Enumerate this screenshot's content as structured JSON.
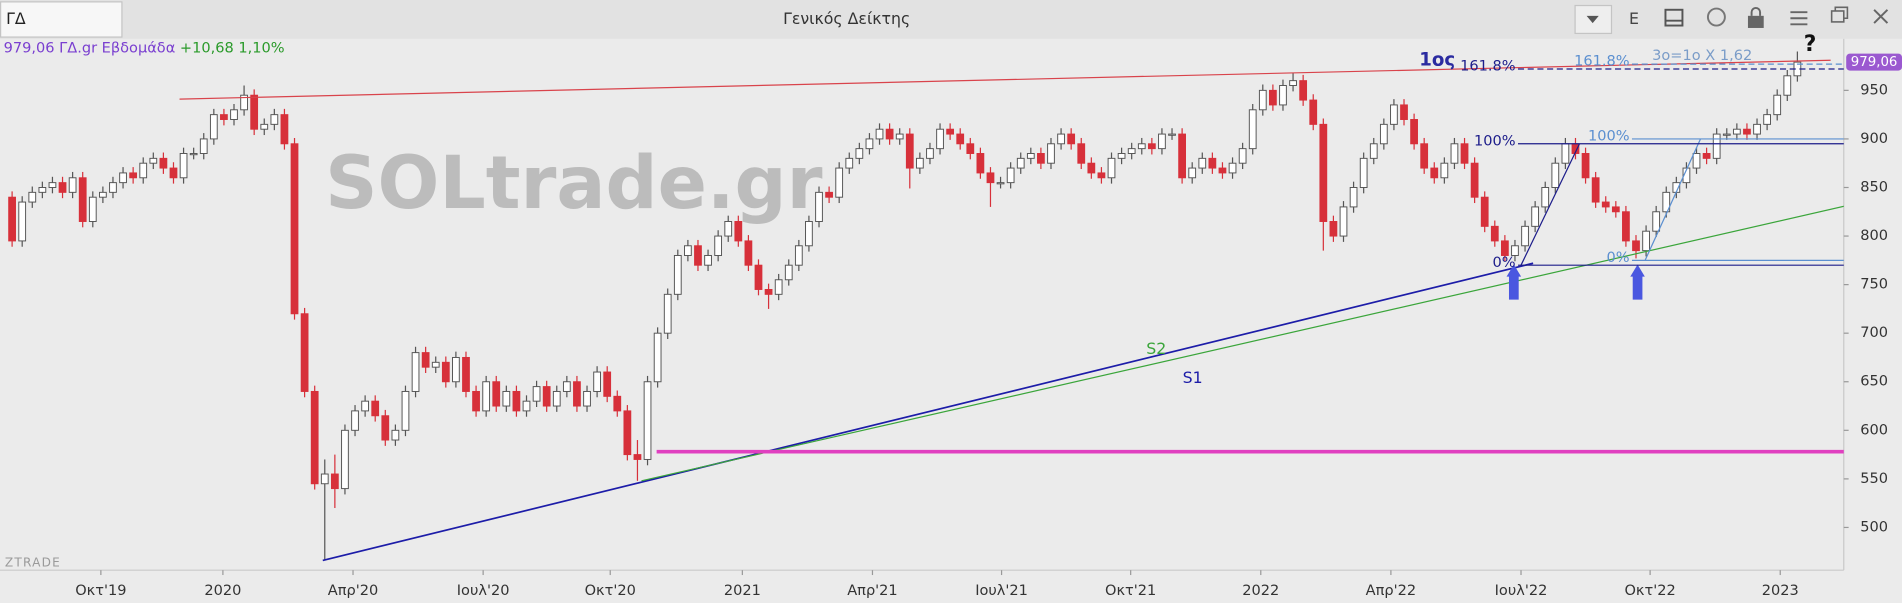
{
  "window": {
    "symbol": "ΓΔ",
    "title": "Γενικός Δείκτης",
    "button": "E"
  },
  "chart_data": {
    "type": "candlestick",
    "quote": {
      "price": "979,06",
      "label": "ΓΔ.gr Εβδομάδα",
      "change": "+10,68",
      "change_pct": "1,10%"
    },
    "watermark": "SOLtrade.gr",
    "brand": "ZTRADE",
    "last_price": {
      "value": 979.06,
      "label": "979,06"
    },
    "up_color": "#ffffff",
    "down_color": "#d7303a",
    "grid": false,
    "xlim": [
      -1.2,
      181.6
    ],
    "ylim": [
      456,
      1003
    ],
    "yticks": [
      500,
      550,
      600,
      650,
      700,
      750,
      800,
      850,
      900,
      950
    ],
    "xticks": [
      {
        "value": 8.8,
        "label": "Οκτ'19"
      },
      {
        "value": 20.9,
        "label": "2020"
      },
      {
        "value": 33.8,
        "label": "Απρ'20"
      },
      {
        "value": 46.7,
        "label": "Ιουλ'20"
      },
      {
        "value": 59.3,
        "label": "Οκτ'20"
      },
      {
        "value": 72.4,
        "label": "2021"
      },
      {
        "value": 85.3,
        "label": "Απρ'21"
      },
      {
        "value": 98.1,
        "label": "Ιουλ'21"
      },
      {
        "value": 110.9,
        "label": "Οκτ'21"
      },
      {
        "value": 123.8,
        "label": "2022"
      },
      {
        "value": 136.7,
        "label": "Απρ'22"
      },
      {
        "value": 149.6,
        "label": "Ιουλ'22"
      },
      {
        "value": 162.4,
        "label": "Οκτ'22"
      },
      {
        "value": 175.3,
        "label": "2023"
      }
    ],
    "ohlc": [
      [
        840,
        846,
        789,
        795
      ],
      [
        795,
        841,
        789,
        835
      ],
      [
        835,
        851,
        829,
        845
      ],
      [
        845,
        856,
        839,
        850
      ],
      [
        850,
        861,
        844,
        855
      ],
      [
        855,
        861,
        839,
        845
      ],
      [
        845,
        866,
        839,
        860
      ],
      [
        860,
        866,
        809,
        815
      ],
      [
        815,
        846,
        809,
        840
      ],
      [
        840,
        851,
        834,
        845
      ],
      [
        845,
        861,
        839,
        855
      ],
      [
        855,
        871,
        849,
        865
      ],
      [
        865,
        871,
        854,
        860
      ],
      [
        860,
        881,
        854,
        875
      ],
      [
        875,
        886,
        869,
        880
      ],
      [
        880,
        886,
        864,
        870
      ],
      [
        870,
        876,
        854,
        860
      ],
      [
        860,
        891,
        854,
        885
      ],
      [
        885,
        891,
        879,
        885
      ],
      [
        885,
        906,
        879,
        900
      ],
      [
        900,
        931,
        894,
        925
      ],
      [
        925,
        931,
        914,
        920
      ],
      [
        920,
        936,
        914,
        930
      ],
      [
        930,
        955,
        924,
        945
      ],
      [
        945,
        951,
        904,
        910
      ],
      [
        910,
        921,
        904,
        915
      ],
      [
        915,
        931,
        909,
        925
      ],
      [
        925,
        931,
        889,
        895
      ],
      [
        895,
        901,
        714,
        720
      ],
      [
        720,
        726,
        634,
        640
      ],
      [
        640,
        646,
        539,
        545
      ],
      [
        545,
        570,
        466,
        555
      ],
      [
        555,
        575,
        520,
        540
      ],
      [
        540,
        606,
        534,
        600
      ],
      [
        600,
        626,
        594,
        620
      ],
      [
        620,
        636,
        614,
        630
      ],
      [
        630,
        636,
        609,
        615
      ],
      [
        615,
        621,
        584,
        590
      ],
      [
        590,
        606,
        584,
        600
      ],
      [
        600,
        646,
        594,
        640
      ],
      [
        640,
        686,
        634,
        680
      ],
      [
        680,
        686,
        659,
        665
      ],
      [
        665,
        676,
        659,
        670
      ],
      [
        670,
        676,
        644,
        650
      ],
      [
        650,
        681,
        644,
        675
      ],
      [
        675,
        681,
        634,
        640
      ],
      [
        640,
        646,
        614,
        620
      ],
      [
        620,
        656,
        614,
        650
      ],
      [
        650,
        656,
        619,
        625
      ],
      [
        625,
        646,
        619,
        640
      ],
      [
        640,
        646,
        614,
        620
      ],
      [
        620,
        636,
        614,
        630
      ],
      [
        630,
        651,
        624,
        645
      ],
      [
        645,
        651,
        619,
        625
      ],
      [
        625,
        646,
        619,
        640
      ],
      [
        640,
        656,
        634,
        650
      ],
      [
        650,
        656,
        619,
        625
      ],
      [
        625,
        646,
        619,
        640
      ],
      [
        640,
        666,
        634,
        660
      ],
      [
        660,
        666,
        629,
        635
      ],
      [
        635,
        641,
        614,
        620
      ],
      [
        620,
        626,
        569,
        575
      ],
      [
        575,
        590,
        548,
        570
      ],
      [
        570,
        656,
        564,
        650
      ],
      [
        650,
        706,
        644,
        700
      ],
      [
        700,
        746,
        694,
        740
      ],
      [
        740,
        786,
        734,
        780
      ],
      [
        780,
        796,
        774,
        790
      ],
      [
        790,
        796,
        764,
        770
      ],
      [
        770,
        786,
        764,
        780
      ],
      [
        780,
        806,
        774,
        800
      ],
      [
        800,
        821,
        794,
        815
      ],
      [
        815,
        821,
        789,
        795
      ],
      [
        795,
        801,
        764,
        770
      ],
      [
        770,
        776,
        739,
        745
      ],
      [
        745,
        751,
        725,
        740
      ],
      [
        740,
        761,
        734,
        755
      ],
      [
        755,
        776,
        749,
        770
      ],
      [
        770,
        796,
        764,
        790
      ],
      [
        790,
        821,
        784,
        815
      ],
      [
        815,
        851,
        809,
        845
      ],
      [
        845,
        851,
        834,
        840
      ],
      [
        840,
        876,
        834,
        870
      ],
      [
        870,
        886,
        864,
        880
      ],
      [
        880,
        896,
        874,
        890
      ],
      [
        890,
        906,
        884,
        900
      ],
      [
        900,
        916,
        894,
        910
      ],
      [
        910,
        916,
        894,
        900
      ],
      [
        900,
        911,
        894,
        905
      ],
      [
        905,
        911,
        849,
        870
      ],
      [
        870,
        886,
        864,
        880
      ],
      [
        880,
        896,
        874,
        890
      ],
      [
        890,
        916,
        884,
        910
      ],
      [
        910,
        916,
        899,
        905
      ],
      [
        905,
        911,
        889,
        895
      ],
      [
        895,
        901,
        879,
        885
      ],
      [
        885,
        891,
        859,
        865
      ],
      [
        865,
        871,
        830,
        855
      ],
      [
        855,
        861,
        849,
        855
      ],
      [
        855,
        876,
        849,
        870
      ],
      [
        870,
        886,
        864,
        880
      ],
      [
        880,
        891,
        874,
        885
      ],
      [
        885,
        891,
        869,
        875
      ],
      [
        875,
        901,
        869,
        895
      ],
      [
        895,
        911,
        889,
        905
      ],
      [
        905,
        911,
        889,
        895
      ],
      [
        895,
        901,
        869,
        875
      ],
      [
        875,
        881,
        859,
        865
      ],
      [
        865,
        871,
        854,
        860
      ],
      [
        860,
        886,
        854,
        880
      ],
      [
        880,
        891,
        874,
        885
      ],
      [
        885,
        896,
        879,
        890
      ],
      [
        890,
        901,
        884,
        895
      ],
      [
        895,
        901,
        884,
        890
      ],
      [
        890,
        911,
        884,
        905
      ],
      [
        905,
        911,
        899,
        905
      ],
      [
        905,
        911,
        854,
        860
      ],
      [
        860,
        876,
        854,
        870
      ],
      [
        870,
        886,
        864,
        880
      ],
      [
        880,
        886,
        864,
        870
      ],
      [
        870,
        876,
        859,
        865
      ],
      [
        865,
        881,
        859,
        875
      ],
      [
        875,
        896,
        869,
        890
      ],
      [
        890,
        936,
        884,
        930
      ],
      [
        930,
        956,
        924,
        950
      ],
      [
        950,
        956,
        929,
        935
      ],
      [
        935,
        961,
        929,
        955
      ],
      [
        955,
        968,
        949,
        960
      ],
      [
        960,
        966,
        934,
        940
      ],
      [
        940,
        946,
        909,
        915
      ],
      [
        915,
        921,
        785,
        815
      ],
      [
        815,
        821,
        794,
        800
      ],
      [
        800,
        836,
        794,
        830
      ],
      [
        830,
        856,
        824,
        850
      ],
      [
        850,
        886,
        844,
        880
      ],
      [
        880,
        901,
        874,
        895
      ],
      [
        895,
        921,
        889,
        915
      ],
      [
        915,
        941,
        909,
        935
      ],
      [
        935,
        941,
        914,
        920
      ],
      [
        920,
        926,
        889,
        895
      ],
      [
        895,
        901,
        864,
        870
      ],
      [
        870,
        876,
        854,
        860
      ],
      [
        860,
        881,
        854,
        875
      ],
      [
        875,
        901,
        869,
        895
      ],
      [
        895,
        901,
        869,
        875
      ],
      [
        875,
        881,
        834,
        840
      ],
      [
        840,
        846,
        804,
        810
      ],
      [
        810,
        816,
        789,
        795
      ],
      [
        795,
        801,
        774,
        780
      ],
      [
        780,
        796,
        774,
        790
      ],
      [
        790,
        816,
        784,
        810
      ],
      [
        810,
        836,
        804,
        830
      ],
      [
        830,
        856,
        824,
        850
      ],
      [
        850,
        881,
        844,
        875
      ],
      [
        875,
        901,
        869,
        895
      ],
      [
        895,
        901,
        879,
        885
      ],
      [
        885,
        891,
        854,
        860
      ],
      [
        860,
        866,
        829,
        835
      ],
      [
        835,
        841,
        824,
        830
      ],
      [
        830,
        836,
        819,
        825
      ],
      [
        825,
        831,
        789,
        795
      ],
      [
        795,
        801,
        777,
        785
      ],
      [
        785,
        811,
        779,
        805
      ],
      [
        805,
        831,
        799,
        825
      ],
      [
        825,
        851,
        819,
        845
      ],
      [
        845,
        861,
        839,
        855
      ],
      [
        855,
        876,
        849,
        870
      ],
      [
        870,
        891,
        864,
        885
      ],
      [
        885,
        891,
        874,
        880
      ],
      [
        880,
        911,
        874,
        905
      ],
      [
        905,
        911,
        899,
        905
      ],
      [
        905,
        916,
        899,
        910
      ],
      [
        910,
        916,
        899,
        905
      ],
      [
        905,
        921,
        899,
        915
      ],
      [
        915,
        931,
        909,
        925
      ],
      [
        925,
        951,
        919,
        945
      ],
      [
        945,
        971,
        939,
        965
      ],
      [
        965,
        990,
        959,
        979.06
      ]
    ],
    "drawings": [
      {
        "x": [
          16.6,
          180.3
        ],
        "y": [
          941,
          981
        ],
        "color": "#d9434b",
        "width": 1
      },
      {
        "x": [
          30.8,
          150.8
        ],
        "y": [
          466,
          772
        ],
        "color": "#1c1ca8",
        "width": 1.4
      },
      {
        "x": [
          62.4,
          182.2
        ],
        "y": [
          548,
          832
        ],
        "color": "#3aa53a",
        "width": 1
      },
      {
        "x": [
          63.9,
          182.2
        ],
        "y": [
          578,
          578
        ],
        "color": "#e040c0",
        "width": 3
      },
      {
        "x": [
          149.6,
          155.4
        ],
        "y": [
          770,
          895
        ],
        "color": "#1c1c8a",
        "width": 1
      },
      {
        "x": [
          161.9,
          167.4
        ],
        "y": [
          775,
          900
        ],
        "color": "#5b8fd0",
        "width": 1
      }
    ],
    "fibs": [
      {
        "start": 149.3,
        "color": "#1c1c8a",
        "levels": [
          {
            "value": 895,
            "label": "100%"
          },
          {
            "value": 770,
            "label": "0%"
          },
          {
            "value": 972,
            "label": "161.8%"
          }
        ]
      },
      {
        "start": 160.6,
        "color": "#5b8fd0",
        "levels": [
          {
            "value": 900,
            "label": "100%"
          },
          {
            "value": 775,
            "label": "0%"
          },
          {
            "value": 977,
            "label": "161.8%"
          }
        ]
      }
    ],
    "annotations": {
      "s1": "S1",
      "s2": "S2",
      "question": "?",
      "target": "3ο=1ο X 1,62",
      "first": "1ος"
    }
  }
}
